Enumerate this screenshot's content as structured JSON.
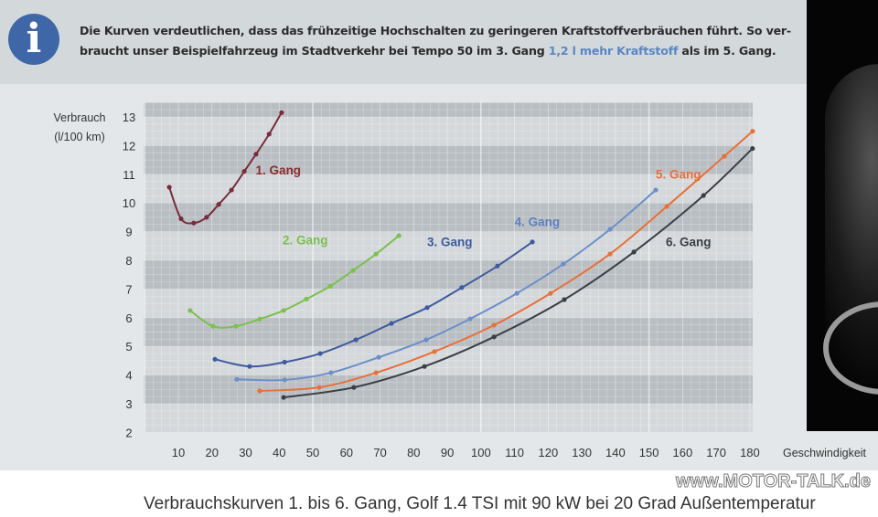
{
  "banner": {
    "icon": "info-icon",
    "line1": "Die Kurven verdeutlichen, dass das frühzeitige Hochschalten zu geringeren Kraftstoffverbräuchen führt. So ver-",
    "line2_pre": "braucht unser Beispielfahrzeug im Stadtverkehr bei Tempo 50 im 3. Gang ",
    "line2_highlight": "1,2 l mehr Kraftstoff",
    "line2_post": " als im 5. Gang.",
    "highlight_color": "#5b86c4"
  },
  "caption": "Verbrauchskurven 1. bis 6. Gang, Golf 1.4 TSI mit 90 kW bei 20 Grad Außentemperatur",
  "watermark": "www.MOTOR-TALK.de",
  "chart_data": {
    "type": "line",
    "title": "",
    "xlabel": "Geschwindigkeit",
    "ylabel_line1": "Verbrauch",
    "ylabel_line2": "(l/100 km)",
    "xlim": [
      0,
      182
    ],
    "ylim": [
      2,
      13.5
    ],
    "xticks": [
      10,
      20,
      30,
      40,
      50,
      60,
      70,
      80,
      90,
      100,
      110,
      120,
      130,
      140,
      150,
      160,
      170,
      180
    ],
    "yticks": [
      2,
      3,
      4,
      5,
      6,
      7,
      8,
      9,
      10,
      11,
      12,
      13
    ],
    "grid": true,
    "series": [
      {
        "name": "1. Gang",
        "color": "#7a2b3c",
        "label_color": "#8a2d30",
        "label_at": [
          33,
          11
        ],
        "x": [
          7.3,
          10.8,
          14.6,
          18.4,
          22,
          25.8,
          29.6,
          33.1,
          37,
          40.7
        ],
        "y": [
          10.55,
          9.45,
          9.3,
          9.5,
          9.95,
          10.45,
          11.1,
          11.7,
          12.4,
          13.15
        ]
      },
      {
        "name": "2. Gang",
        "color": "#7cc04e",
        "label_color": "#7cc04e",
        "label_at": [
          41,
          8.55
        ],
        "x": [
          13.5,
          20.3,
          27.1,
          34.2,
          41.3,
          48.1,
          55.2,
          62,
          68.8,
          75.6
        ],
        "y": [
          6.25,
          5.7,
          5.7,
          5.95,
          6.25,
          6.65,
          7.1,
          7.65,
          8.22,
          8.86
        ]
      },
      {
        "name": "3. Gang",
        "color": "#3e5b9e",
        "label_color": "#3e5b9e",
        "label_at": [
          84,
          8.5
        ],
        "x": [
          20.9,
          31.2,
          41.6,
          52.2,
          62.8,
          73.4,
          84,
          94.3,
          104.9,
          115.3
        ],
        "y": [
          4.55,
          4.3,
          4.45,
          4.75,
          5.23,
          5.8,
          6.35,
          7.05,
          7.8,
          8.64
        ]
      },
      {
        "name": "4. Gang",
        "color": "#6b8fca",
        "label_color": "#5b7fc0",
        "label_at": [
          110,
          9.2
        ],
        "x": [
          27.4,
          41.6,
          55.4,
          69.6,
          83.7,
          96.8,
          110.7,
          124.5,
          138.4,
          152
        ],
        "y": [
          3.85,
          3.83,
          4.08,
          4.62,
          5.23,
          5.96,
          6.85,
          7.87,
          9.08,
          10.45
        ]
      },
      {
        "name": "5. Gang",
        "color": "#e8703a",
        "label_color": "#e8703a",
        "label_at": [
          152,
          10.85
        ],
        "x": [
          34.2,
          51.9,
          68.8,
          86.2,
          103.9,
          120.7,
          138.4,
          155.3,
          172.4,
          180.8
        ],
        "y": [
          3.45,
          3.57,
          4.08,
          4.82,
          5.74,
          6.85,
          8.22,
          9.88,
          11.63,
          12.5
        ]
      },
      {
        "name": "6. Gang",
        "color": "#3a3f45",
        "label_color": "#3a3f45",
        "label_at": [
          155,
          8.5
        ],
        "x": [
          41.3,
          62.2,
          83.2,
          103.9,
          124.8,
          145.5,
          166.2,
          180.8
        ],
        "y": [
          3.22,
          3.57,
          4.3,
          5.33,
          6.63,
          8.29,
          10.26,
          11.9
        ]
      }
    ]
  }
}
